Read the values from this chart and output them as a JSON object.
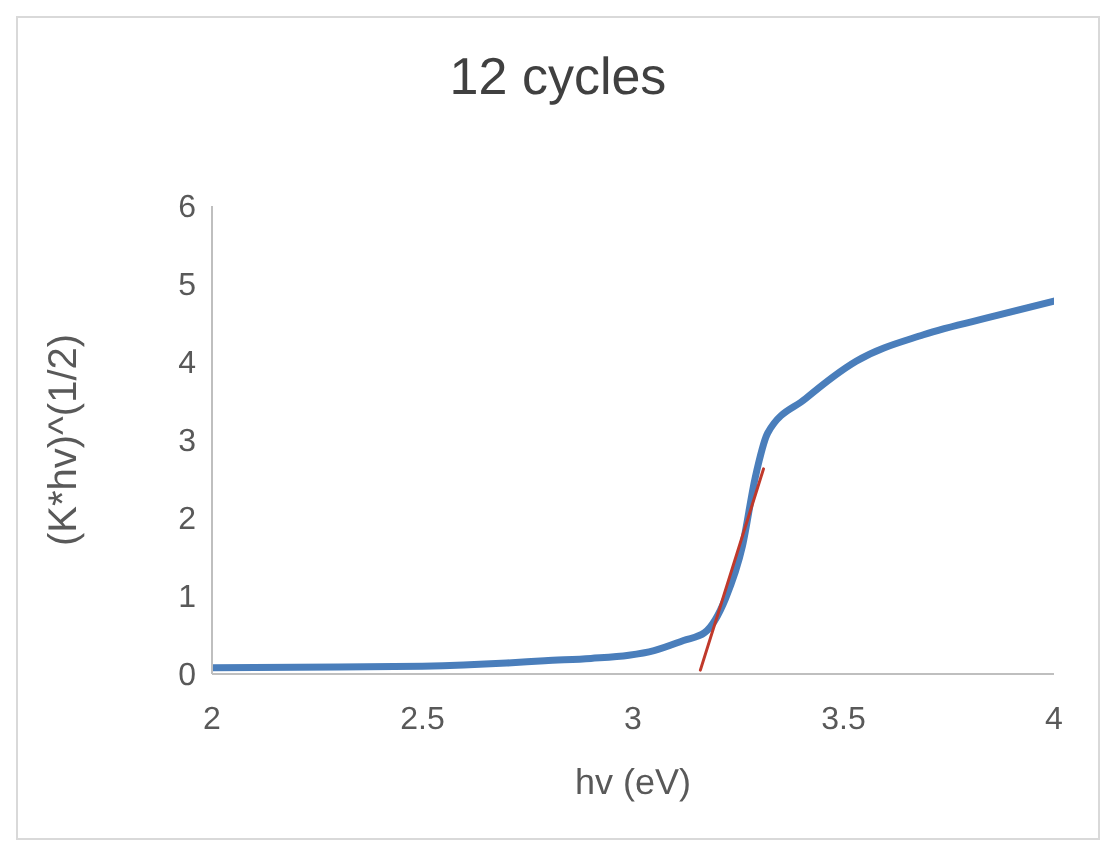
{
  "chart_data": {
    "type": "line",
    "title": "12 cycles",
    "xlabel": "hv (eV)",
    "ylabel": "(K*hv)^(1/2)",
    "xlim": [
      2,
      4
    ],
    "xticks": [
      2,
      2.5,
      3,
      3.5,
      4
    ],
    "ylim": [
      0,
      6
    ],
    "yticks": [
      0,
      1,
      2,
      3,
      4,
      5,
      6
    ],
    "marker": "none",
    "line_style": "solid",
    "series": [
      {
        "color": "#4a7ebb",
        "x": [
          2,
          2.3,
          2.5,
          2.7,
          2.79,
          2.9,
          2.99,
          3.05,
          3.12,
          3.17,
          3.22,
          3.26,
          3.29,
          3.32,
          3.41,
          3.53,
          3.69,
          3.86,
          4
        ],
        "values": [
          0.08,
          0.09,
          0.1,
          0.14,
          0.17,
          0.2,
          0.24,
          0.3,
          0.43,
          0.53,
          0.97,
          1.64,
          2.51,
          3.09,
          3.53,
          4.01,
          4.35,
          4.59,
          4.78
        ]
      },
      {
        "type": "line",
        "color": "#c0392b",
        "x": [
          3.16,
          3.31
        ],
        "values": [
          0.05,
          2.63
        ]
      }
    ]
  }
}
